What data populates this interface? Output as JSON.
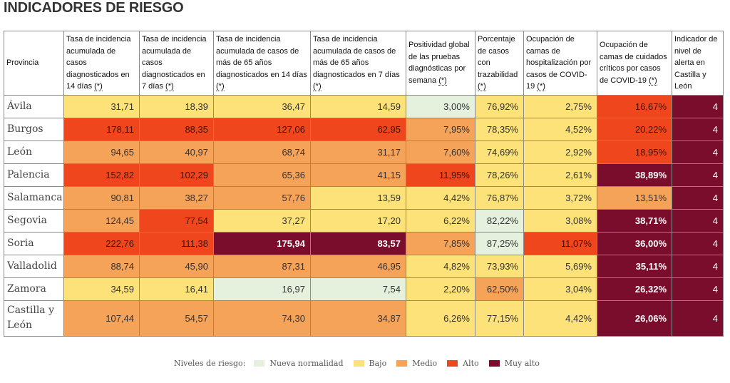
{
  "title": "INDICADORES DE RIESGO",
  "columns": [
    {
      "text": "Provincia",
      "ast": ""
    },
    {
      "text": "Tasa de incidencia acumulada de casos diagnosticados en 14 días ",
      "ast": "(*)"
    },
    {
      "text": "Tasa de incidencia acumulada de casos diagnosticados en 7 días ",
      "ast": "(*)"
    },
    {
      "text": "Tasa de incidencia acumulada de casos de más de 65 años diagnosticados en 14 días ",
      "ast": "(*)"
    },
    {
      "text": "Tasa de incidencia acumulada de casos de más de 65 años diagnosticados en 7 días ",
      "ast": "(*)"
    },
    {
      "text": "Positividad global de las pruebas diagnósticas por semana ",
      "ast": "(*)"
    },
    {
      "text": "Porcentaje de casos con trazabilidad ",
      "ast": "(*)"
    },
    {
      "text": "Ocupación de camas de hospitalización por casos de COVID-19 ",
      "ast": "(*)"
    },
    {
      "text": "Ocupación de camas de cuidados críticos por casos de COVID-19 ",
      "ast": "(*)"
    },
    {
      "text": "Indicador de nivel de alerta en Castilla y León",
      "ast": ""
    }
  ],
  "rows": [
    {
      "provincia": "Ávila",
      "cells": [
        {
          "v": "31,71",
          "l": "b"
        },
        {
          "v": "18,39",
          "l": "b"
        },
        {
          "v": "36,47",
          "l": "b"
        },
        {
          "v": "14,59",
          "l": "b"
        },
        {
          "v": "3,00%",
          "l": "n"
        },
        {
          "v": "76,92%",
          "l": "b"
        },
        {
          "v": "2,75%",
          "l": "b"
        },
        {
          "v": "16,67%",
          "l": "a"
        },
        {
          "v": "4",
          "l": "ind"
        }
      ]
    },
    {
      "provincia": "Burgos",
      "cells": [
        {
          "v": "178,11",
          "l": "a"
        },
        {
          "v": "88,35",
          "l": "a"
        },
        {
          "v": "127,06",
          "l": "a"
        },
        {
          "v": "62,95",
          "l": "a"
        },
        {
          "v": "7,95%",
          "l": "m"
        },
        {
          "v": "78,35%",
          "l": "b"
        },
        {
          "v": "4,52%",
          "l": "b"
        },
        {
          "v": "20,22%",
          "l": "a"
        },
        {
          "v": "4",
          "l": "ind"
        }
      ]
    },
    {
      "provincia": "León",
      "cells": [
        {
          "v": "94,65",
          "l": "m"
        },
        {
          "v": "40,97",
          "l": "m"
        },
        {
          "v": "68,74",
          "l": "m"
        },
        {
          "v": "31,17",
          "l": "m"
        },
        {
          "v": "7,60%",
          "l": "m"
        },
        {
          "v": "74,69%",
          "l": "b"
        },
        {
          "v": "2,92%",
          "l": "b"
        },
        {
          "v": "18,95%",
          "l": "a"
        },
        {
          "v": "4",
          "l": "ind"
        }
      ]
    },
    {
      "provincia": "Palencia",
      "cells": [
        {
          "v": "152,82",
          "l": "a"
        },
        {
          "v": "102,29",
          "l": "a"
        },
        {
          "v": "65,36",
          "l": "m"
        },
        {
          "v": "41,15",
          "l": "m"
        },
        {
          "v": "11,95%",
          "l": "a"
        },
        {
          "v": "78,26%",
          "l": "b"
        },
        {
          "v": "2,61%",
          "l": "b"
        },
        {
          "v": "38,89%",
          "l": "ma"
        },
        {
          "v": "4",
          "l": "ind"
        }
      ]
    },
    {
      "provincia": "Salamanca",
      "cells": [
        {
          "v": "90,81",
          "l": "m"
        },
        {
          "v": "38,27",
          "l": "m"
        },
        {
          "v": "57,76",
          "l": "m"
        },
        {
          "v": "13,59",
          "l": "b"
        },
        {
          "v": "4,42%",
          "l": "b"
        },
        {
          "v": "76,87%",
          "l": "b"
        },
        {
          "v": "3,72%",
          "l": "b"
        },
        {
          "v": "13,51%",
          "l": "m"
        },
        {
          "v": "4",
          "l": "ind"
        }
      ]
    },
    {
      "provincia": "Segovia",
      "cells": [
        {
          "v": "124,45",
          "l": "m"
        },
        {
          "v": "77,54",
          "l": "a"
        },
        {
          "v": "37,27",
          "l": "b"
        },
        {
          "v": "17,20",
          "l": "b"
        },
        {
          "v": "6,22%",
          "l": "b"
        },
        {
          "v": "82,22%",
          "l": "n"
        },
        {
          "v": "3,08%",
          "l": "b"
        },
        {
          "v": "38,71%",
          "l": "ma"
        },
        {
          "v": "4",
          "l": "ind"
        }
      ]
    },
    {
      "provincia": "Soria",
      "cells": [
        {
          "v": "222,76",
          "l": "a"
        },
        {
          "v": "111,38",
          "l": "a"
        },
        {
          "v": "175,94",
          "l": "ma"
        },
        {
          "v": "83,57",
          "l": "ma"
        },
        {
          "v": "7,85%",
          "l": "m"
        },
        {
          "v": "87,25%",
          "l": "n"
        },
        {
          "v": "11,07%",
          "l": "a"
        },
        {
          "v": "36,00%",
          "l": "ma"
        },
        {
          "v": "4",
          "l": "ind"
        }
      ]
    },
    {
      "provincia": "Valladolid",
      "cells": [
        {
          "v": "88,74",
          "l": "m"
        },
        {
          "v": "45,90",
          "l": "m"
        },
        {
          "v": "87,31",
          "l": "m"
        },
        {
          "v": "46,95",
          "l": "m"
        },
        {
          "v": "4,82%",
          "l": "b"
        },
        {
          "v": "73,93%",
          "l": "b"
        },
        {
          "v": "5,69%",
          "l": "b"
        },
        {
          "v": "35,11%",
          "l": "ma"
        },
        {
          "v": "4",
          "l": "ind"
        }
      ]
    },
    {
      "provincia": "Zamora",
      "cells": [
        {
          "v": "34,59",
          "l": "b"
        },
        {
          "v": "16,41",
          "l": "b"
        },
        {
          "v": "16,97",
          "l": "n"
        },
        {
          "v": "7,54",
          "l": "n"
        },
        {
          "v": "2,20%",
          "l": "b"
        },
        {
          "v": "62,50%",
          "l": "m"
        },
        {
          "v": "3,04%",
          "l": "b"
        },
        {
          "v": "26,32%",
          "l": "ma"
        },
        {
          "v": "4",
          "l": "ind"
        }
      ]
    },
    {
      "provincia": "Castilla y León",
      "cells": [
        {
          "v": "107,44",
          "l": "m"
        },
        {
          "v": "54,57",
          "l": "m"
        },
        {
          "v": "74,30",
          "l": "m"
        },
        {
          "v": "34,87",
          "l": "m"
        },
        {
          "v": "6,26%",
          "l": "b"
        },
        {
          "v": "77,15%",
          "l": "b"
        },
        {
          "v": "4,42%",
          "l": "b"
        },
        {
          "v": "26,06%",
          "l": "ma"
        },
        {
          "v": "4",
          "l": "ind"
        }
      ]
    }
  ],
  "legend": {
    "label": "Niveles de riesgo:",
    "items": [
      {
        "name": "Nueva normalidad",
        "color": "#e5f1dd"
      },
      {
        "name": "Bajo",
        "color": "#fde27a"
      },
      {
        "name": "Medio",
        "color": "#f6a35a"
      },
      {
        "name": "Alto",
        "color": "#f0461e"
      },
      {
        "name": "Muy alto",
        "color": "#7a0c2c"
      }
    ]
  }
}
